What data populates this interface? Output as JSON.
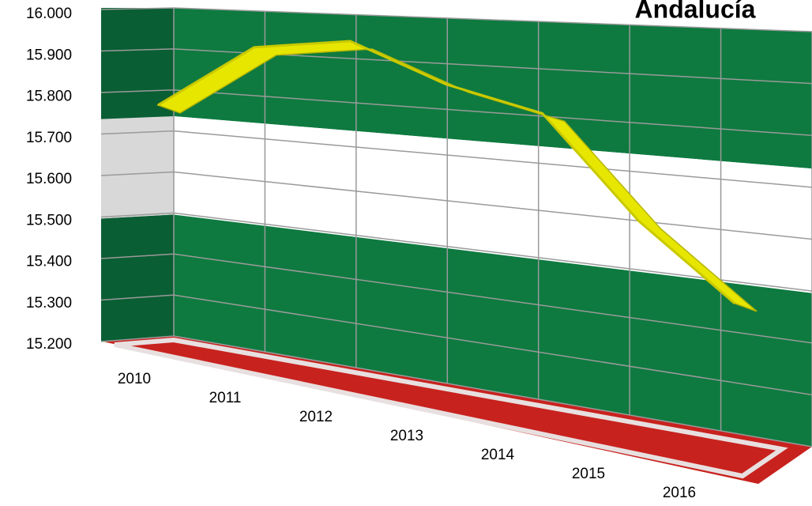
{
  "chart_data": {
    "type": "line",
    "title": "Andalucía",
    "categories": [
      "2010",
      "2011",
      "2012",
      "2013",
      "2014",
      "2015",
      "2016"
    ],
    "series": [
      {
        "name": "Andalucía",
        "color": "#e6e600",
        "values": [
          15780,
          15920,
          15935,
          15830,
          15760,
          15500,
          15300
        ]
      }
    ],
    "ylim": [
      15200,
      16000
    ],
    "yticks": [
      {
        "value": 15200,
        "label": "15.200"
      },
      {
        "value": 15300,
        "label": "15.300"
      },
      {
        "value": 15400,
        "label": "15.400"
      },
      {
        "value": 15500,
        "label": "15.500"
      },
      {
        "value": 15600,
        "label": "15.600"
      },
      {
        "value": 15700,
        "label": "15.700"
      },
      {
        "value": 15800,
        "label": "15.800"
      },
      {
        "value": 15900,
        "label": "15.900"
      },
      {
        "value": 16000,
        "label": "16.000"
      }
    ],
    "grid": true
  }
}
